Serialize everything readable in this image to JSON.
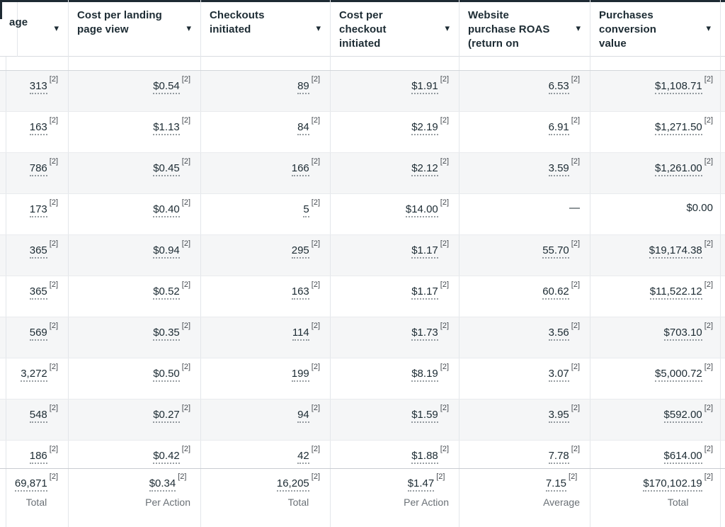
{
  "app_title": "Ads Manager metrics table",
  "footnote_marker": "[2]",
  "sort_icon": "▾",
  "empty_value": "—",
  "colors": {
    "header_top_border": "#1e2a33",
    "header_text": "#1c2b33",
    "value_text": "#1c2b33",
    "muted_label": "#6a7076",
    "row_stripe": "#f5f6f7",
    "divider": "#e3e6ea"
  },
  "columns": [
    {
      "key": "left-edge",
      "label": "",
      "sortable": false,
      "truncated": true
    },
    {
      "key": "landing-page-views",
      "label": "age",
      "sortable": true,
      "truncated": true
    },
    {
      "key": "cost-per-landing-page-view",
      "label": "Cost per landing page view",
      "sortable": true,
      "truncated": false
    },
    {
      "key": "checkouts-initiated",
      "label": "Checkouts initiated",
      "sortable": true,
      "truncated": false
    },
    {
      "key": "cost-per-checkout-initiated",
      "label": "Cost per checkout initiated",
      "sortable": true,
      "truncated": true
    },
    {
      "key": "website-purchase-roas",
      "label": "Website purchase ROAS (return on",
      "sortable": true,
      "truncated": true
    },
    {
      "key": "purchases-conversion-value",
      "label": "Purchases conversion value",
      "sortable": true,
      "truncated": true
    },
    {
      "key": "right-edge",
      "label": "",
      "sortable": false,
      "truncated": true
    }
  ],
  "rows": [
    {
      "cells": [
        {
          "text": "313",
          "sup": true
        },
        {
          "text": "$0.54",
          "sup": true
        },
        {
          "text": "89",
          "sup": true
        },
        {
          "text": "$1.91",
          "sup": true
        },
        {
          "text": "6.53",
          "sup": true
        },
        {
          "text": "$1,108.71",
          "sup": true
        }
      ]
    },
    {
      "cells": [
        {
          "text": "163",
          "sup": true
        },
        {
          "text": "$1.13",
          "sup": true
        },
        {
          "text": "84",
          "sup": true
        },
        {
          "text": "$2.19",
          "sup": true
        },
        {
          "text": "6.91",
          "sup": true
        },
        {
          "text": "$1,271.50",
          "sup": true
        }
      ]
    },
    {
      "cells": [
        {
          "text": "786",
          "sup": true
        },
        {
          "text": "$0.45",
          "sup": true
        },
        {
          "text": "166",
          "sup": true
        },
        {
          "text": "$2.12",
          "sup": true
        },
        {
          "text": "3.59",
          "sup": true
        },
        {
          "text": "$1,261.00",
          "sup": true
        }
      ]
    },
    {
      "cells": [
        {
          "text": "173",
          "sup": true
        },
        {
          "text": "$0.40",
          "sup": true
        },
        {
          "text": "5",
          "sup": true
        },
        {
          "text": "$14.00",
          "sup": true
        },
        {
          "text": "—",
          "sup": false
        },
        {
          "text": "$0.00",
          "sup": false
        }
      ]
    },
    {
      "cells": [
        {
          "text": "365",
          "sup": true
        },
        {
          "text": "$0.94",
          "sup": true
        },
        {
          "text": "295",
          "sup": true
        },
        {
          "text": "$1.17",
          "sup": true
        },
        {
          "text": "55.70",
          "sup": true
        },
        {
          "text": "$19,174.38",
          "sup": true
        }
      ]
    },
    {
      "cells": [
        {
          "text": "365",
          "sup": true
        },
        {
          "text": "$0.52",
          "sup": true
        },
        {
          "text": "163",
          "sup": true
        },
        {
          "text": "$1.17",
          "sup": true
        },
        {
          "text": "60.62",
          "sup": true
        },
        {
          "text": "$11,522.12",
          "sup": true
        }
      ]
    },
    {
      "cells": [
        {
          "text": "569",
          "sup": true
        },
        {
          "text": "$0.35",
          "sup": true
        },
        {
          "text": "114",
          "sup": true
        },
        {
          "text": "$1.73",
          "sup": true
        },
        {
          "text": "3.56",
          "sup": true
        },
        {
          "text": "$703.10",
          "sup": true
        }
      ]
    },
    {
      "cells": [
        {
          "text": "3,272",
          "sup": true
        },
        {
          "text": "$0.50",
          "sup": true
        },
        {
          "text": "199",
          "sup": true
        },
        {
          "text": "$8.19",
          "sup": true
        },
        {
          "text": "3.07",
          "sup": true
        },
        {
          "text": "$5,000.72",
          "sup": true
        }
      ]
    },
    {
      "cells": [
        {
          "text": "548",
          "sup": true
        },
        {
          "text": "$0.27",
          "sup": true
        },
        {
          "text": "94",
          "sup": true
        },
        {
          "text": "$1.59",
          "sup": true
        },
        {
          "text": "3.95",
          "sup": true
        },
        {
          "text": "$592.00",
          "sup": true
        }
      ]
    },
    {
      "cells": [
        {
          "text": "186",
          "sup": true
        },
        {
          "text": "$0.42",
          "sup": true
        },
        {
          "text": "42",
          "sup": true
        },
        {
          "text": "$1.88",
          "sup": true
        },
        {
          "text": "7.78",
          "sup": true
        },
        {
          "text": "$614.00",
          "sup": true
        }
      ]
    }
  ],
  "summary": {
    "cells": [
      {
        "text": "69,871",
        "sup": true,
        "label": "Total"
      },
      {
        "text": "$0.34",
        "sup": true,
        "label": "Per Action"
      },
      {
        "text": "16,205",
        "sup": true,
        "label": "Total"
      },
      {
        "text": "$1.47",
        "sup": true,
        "label": "Per Action"
      },
      {
        "text": "7.15",
        "sup": true,
        "label": "Average"
      },
      {
        "text": "$170,102.19",
        "sup": true,
        "label": "Total"
      }
    ]
  }
}
